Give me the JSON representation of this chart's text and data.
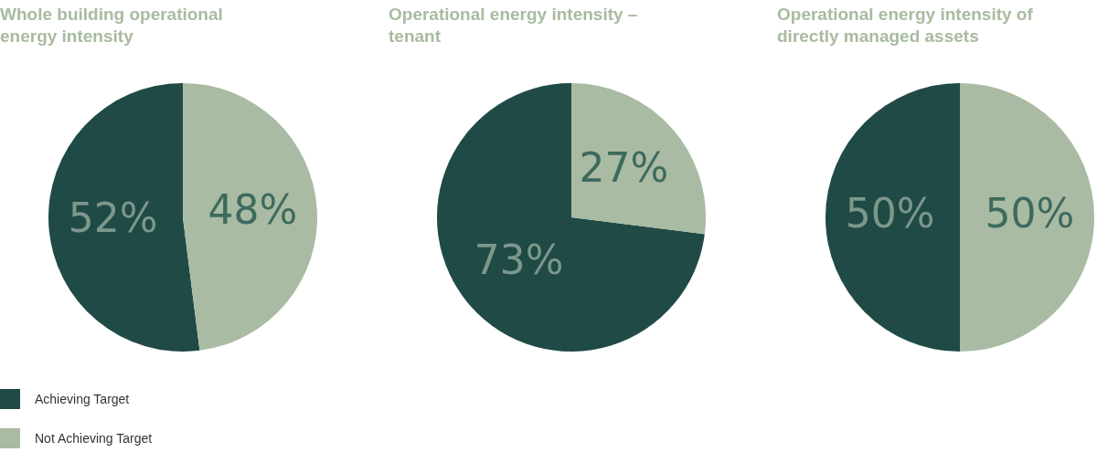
{
  "chart_data": [
    {
      "type": "pie",
      "title": "Whole building operational energy intensity",
      "categories": [
        "Achieving Target",
        "Not Achieving Target"
      ],
      "values": [
        52,
        48
      ],
      "colors": [
        "#1f4a46",
        "#a9bba3"
      ],
      "value_labels": [
        "52%",
        "48%"
      ],
      "legend": "bottom left"
    },
    {
      "type": "pie",
      "title": "Operational energy intensity – tenant",
      "categories": [
        null,
        null
      ],
      "values": [
        73,
        27
      ],
      "colors": [
        "#1f4a46",
        "#a9bba3"
      ],
      "value_labels": [
        "73%",
        "27%"
      ]
    },
    {
      "type": "pie",
      "title": "Operational energy intensity of directly managed assets",
      "categories": [
        null,
        null
      ],
      "values": [
        50,
        50
      ],
      "colors": [
        "#1f4a46",
        "#a9bba3"
      ],
      "value_labels": [
        "50%",
        "50%"
      ]
    }
  ]
}
